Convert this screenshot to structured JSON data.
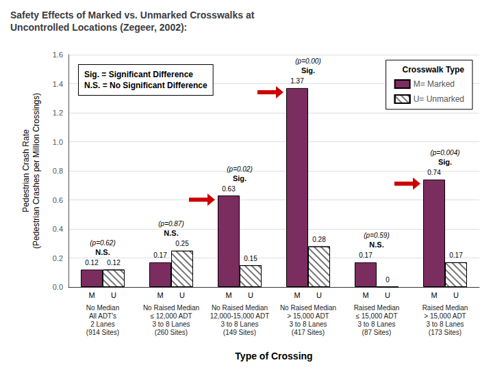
{
  "chart_data": {
    "type": "bar",
    "title": "Safety Effects of Marked vs. Unmarked Crosswalks at\nUncontrolled Locations (Zegeer, 2002):",
    "xlabel": "Type of Crossing",
    "ylabel": "Pedestrian Crash Rate\n(Pedestrian Crashes per Million Crossings)",
    "categories": [
      "No Median\nAll ADT's\n2 Lanes\n(914 Sites)",
      "No Raised Median\n≤ 12,000 ADT\n3 to 8 Lanes\n(260 Sites)",
      "No Raised Median\n12,000-15,000 ADT\n3 to 8 Lanes\n(149 Sites)",
      "No Raised Median\n> 15,000 ADT\n3 to 8 Lanes\n(417 Sites)",
      "Raised Median\n≤ 15,000 ADT\n3 to 8 Lanes\n(87 Sites)",
      "Raised Median\n> 15,000 ADT\n3 to 8 Lanes\n(173 Sites)"
    ],
    "series": [
      {
        "name": "M= Marked",
        "bar_label": "M",
        "color": "#7B2D60",
        "values": [
          0.12,
          0.17,
          0.63,
          1.37,
          0.17,
          0.74
        ]
      },
      {
        "name": "U= Unmarked",
        "bar_label": "U",
        "color": "#FFFFFF",
        "values": [
          0.12,
          0.25,
          0.15,
          0.28,
          0,
          0.17
        ]
      }
    ],
    "ylim": [
      0,
      1.6
    ],
    "yticks": [
      {
        "value": 0,
        "label": "0.0"
      },
      0.2,
      0.4,
      0.6,
      0.8,
      {
        "value": 1.0,
        "label": "1.0"
      },
      1.2,
      1.4,
      1.6
    ],
    "grid": true,
    "legend": "upper right",
    "legend_title": "Crosswalk Type",
    "data_labels": true,
    "p_labels": [
      "(p=0.62)",
      "(p=0.87)",
      "(p=0.02)",
      "(p=0.00)",
      "(p=0.59)",
      "(p=0.004)"
    ],
    "sig_labels": [
      "N.S.",
      "N.S.",
      "Sig.",
      "Sig.",
      "N.S.",
      "Sig."
    ],
    "arrows": [
      false,
      false,
      true,
      true,
      false,
      true
    ],
    "arrow_color": "#CC0000",
    "note": "Sig. = Significant Difference\nN.S. = No Significant Difference"
  }
}
